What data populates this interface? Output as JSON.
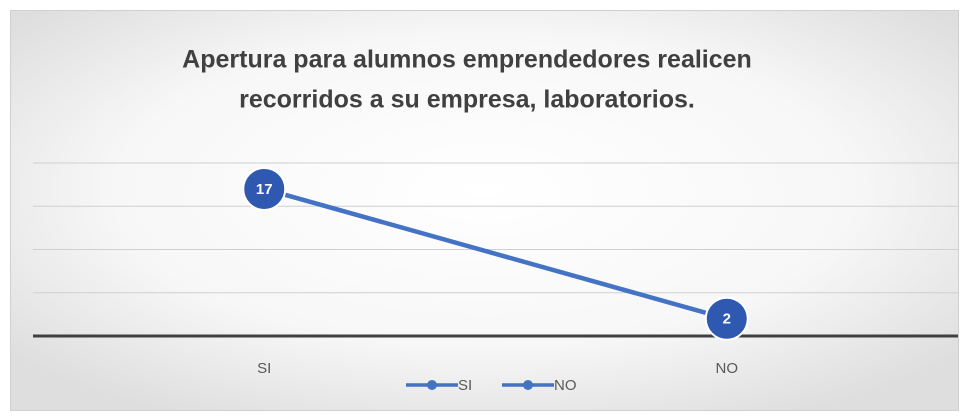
{
  "chart_data": {
    "type": "line",
    "title": [
      "Apertura para alumnos emprendedores realicen",
      "recorridos a su empresa, laboratorios."
    ],
    "categories": [
      "SI",
      "NO"
    ],
    "values": [
      17,
      2
    ],
    "color": "#4472c4",
    "ylim": [
      0,
      20
    ],
    "yticks": [
      0,
      5,
      10,
      15,
      20
    ],
    "grid": true
  }
}
